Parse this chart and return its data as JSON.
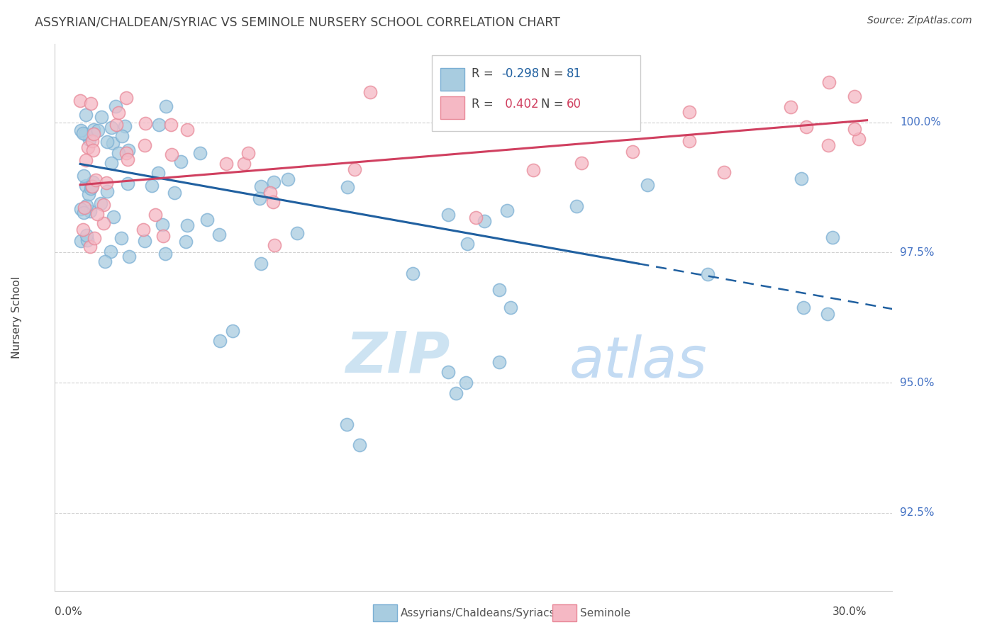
{
  "title": "ASSYRIAN/CHALDEAN/SYRIAC VS SEMINOLE NURSERY SCHOOL CORRELATION CHART",
  "source_text": "Source: ZipAtlas.com",
  "ylabel": "Nursery School",
  "y_tick_vals": [
    92.5,
    95.0,
    97.5,
    100.0
  ],
  "y_tick_labels": [
    "92.5%",
    "95.0%",
    "97.5%",
    "100.0%"
  ],
  "x_min": 0.0,
  "x_max": 30.0,
  "y_min": 91.0,
  "y_max": 101.5,
  "blue_color": "#a8cce0",
  "blue_edge": "#7bafd4",
  "pink_color": "#f5b8c4",
  "pink_edge": "#e88898",
  "trend_blue_color": "#2060a0",
  "trend_pink_color": "#d04060",
  "grid_color": "#d0d0d0",
  "spine_color": "#cccccc",
  "axis_label_color": "#4472c4",
  "text_color": "#444444",
  "watermark_zip_color": "#c5dff0",
  "watermark_atlas_color": "#aaccee"
}
